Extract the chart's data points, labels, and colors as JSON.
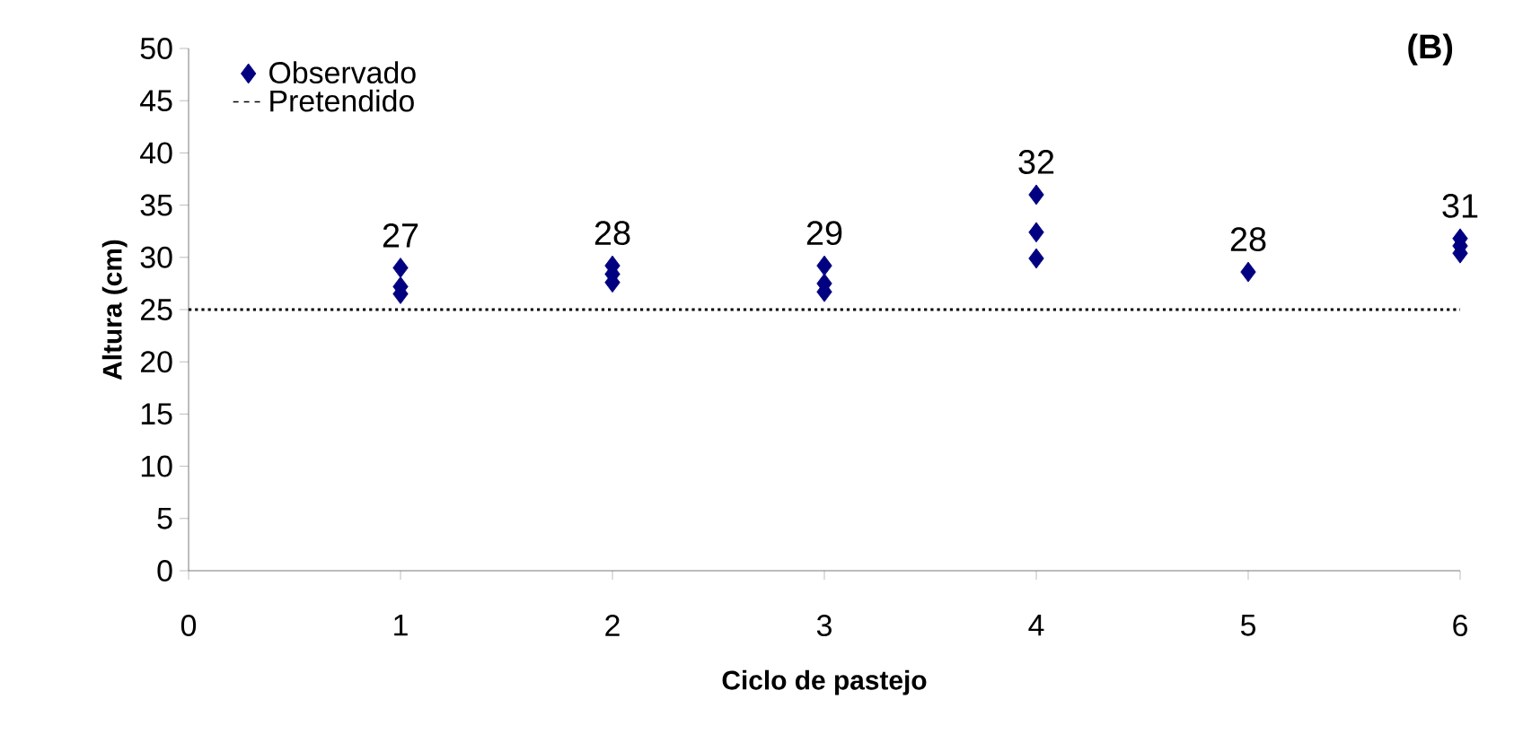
{
  "chart_data": {
    "type": "scatter",
    "title": "(B)",
    "xlabel": "Ciclo de pastejo",
    "ylabel": "Altura (cm)",
    "xlim": [
      0,
      6
    ],
    "xticks": [
      0,
      1,
      2,
      3,
      4,
      5,
      6
    ],
    "ylim": [
      0,
      50
    ],
    "yticks": [
      0,
      5,
      10,
      15,
      20,
      25,
      30,
      35,
      40,
      45,
      50
    ],
    "series": [
      {
        "name": "Observado",
        "color": "#000080",
        "x": [
          1,
          1,
          1,
          2,
          2,
          2,
          3,
          3,
          3,
          4,
          4,
          4,
          5,
          6,
          6,
          6
        ],
        "values": [
          29.0,
          27.2,
          26.5,
          29.2,
          28.4,
          27.6,
          29.2,
          27.5,
          26.7,
          36.0,
          32.4,
          29.9,
          28.6,
          31.8,
          31.1,
          30.4
        ]
      }
    ],
    "ref_lines": [
      {
        "axis": "y",
        "value": 25,
        "label": "Pretendido",
        "color": "#000000",
        "line_style": "dotted"
      }
    ],
    "annotations": [
      "27",
      "28",
      "29",
      "32",
      "28",
      "31"
    ],
    "marker": "diamond",
    "legend": "top left",
    "grid": false
  }
}
